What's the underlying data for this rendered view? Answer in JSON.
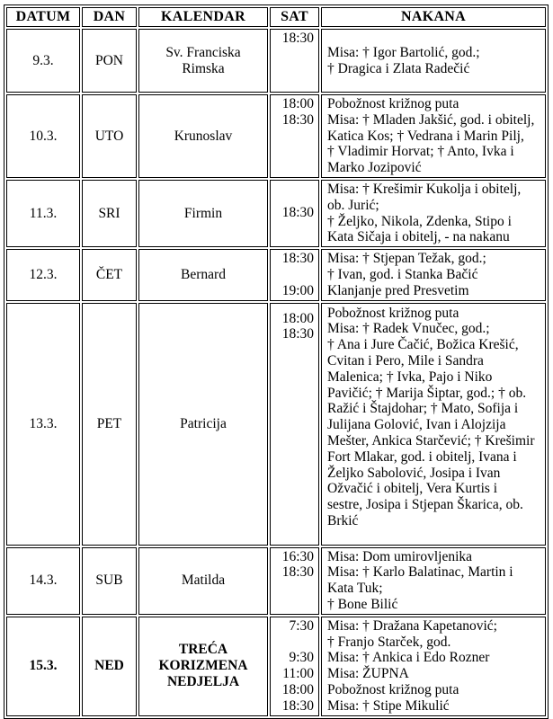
{
  "table": {
    "headers": [
      "DATUM",
      "DAN",
      "KALENDAR",
      "SAT",
      "NAKANA"
    ],
    "rows": [
      {
        "datum": "9.3.",
        "dan": "PON",
        "kalendar": "Sv. Franciska\nRimska",
        "sat": "18:30",
        "nakana": "Misa: † Igor Bartolić, god.;\n† Dragica i Zlata Radečić",
        "emphasis": false
      },
      {
        "datum": "10.3.",
        "dan": "UTO",
        "kalendar": "Krunoslav",
        "sat": "18:00\n18:30",
        "nakana": "Pobožnost križnog puta\nMisa: † Mladen Jakšić, god. i obitelj,\nKatica Kos; † Vedrana i Marin Pilj,\n† Vladimir Horvat; † Anto, Ivka i\nMarko Jozipović",
        "emphasis": false
      },
      {
        "datum": "11.3.",
        "dan": "SRI",
        "kalendar": "Firmin",
        "sat": "18:30",
        "nakana": "Misa: † Krešimir Kukolja i obitelj,\nob. Jurić;\n† Željko, Nikola, Zdenka, Stipo i\nKata Sičaja i obitelj, - na nakanu",
        "emphasis": false
      },
      {
        "datum": "12.3.",
        "dan": "ČET",
        "kalendar": "Bernard",
        "sat": "18:30\n\n19:00",
        "nakana": "Misa: † Stjepan Težak, god.;\n† Ivan, god. i Stanka Bačić\nKlanjanje pred Presvetim",
        "emphasis": false
      },
      {
        "datum": "13.3.",
        "dan": "PET",
        "kalendar": "Patricija",
        "sat": "18:00\n18:30",
        "nakana": "Pobožnost križnog puta\nMisa: † Radek Vnučec, god.;\n† Ana i Jure Čačić, Božica Krešić,\nCvitan i Pero, Mile i Sandra\nMalenica; † Ivka, Pajo i Niko\nPavičić; † Marija Šiptar, god.; † ob.\nRažić i Štajdohar; † Mato, Sofija i\nJulijana Golović, Ivan i Alojzija\nMešter, Ankica Starčević; † Krešimir\nFort Mlakar, god. i obitelj, Ivana i\nŽeljko Sabolović, Josipa i Ivan\nOžvačić i obitelj, Vera Kurtis i\nsestre, Josipa i Stjepan Škarica, ob.\nBrkić",
        "emphasis": false
      },
      {
        "datum": "14.3.",
        "dan": "SUB",
        "kalendar": "Matilda",
        "sat": "16:30\n18:30",
        "nakana": "Misa: Dom umirovljenika\nMisa: † Karlo Balatinac, Martin i\nKata Tuk;\n† Bone Bilić",
        "emphasis": false
      },
      {
        "datum": "15.3.",
        "dan": "NED",
        "kalendar": "TREĆA\nKORIZMENA\nNEDJELJA",
        "sat": "7:30\n\n9:30\n11:00\n18:00\n18:30",
        "nakana": "Misa: † Dražana Kapetanović;\n† Franjo Starček, god.\nMisa: † Ankica i Edo Rozner\nMisa: ŽUPNA\nPobožnost križnog puta\nMisa: † Stipe Mikulić",
        "emphasis": true
      }
    ]
  },
  "colors": {
    "text": "#000000",
    "border": "#000000",
    "background": "#ffffff"
  }
}
